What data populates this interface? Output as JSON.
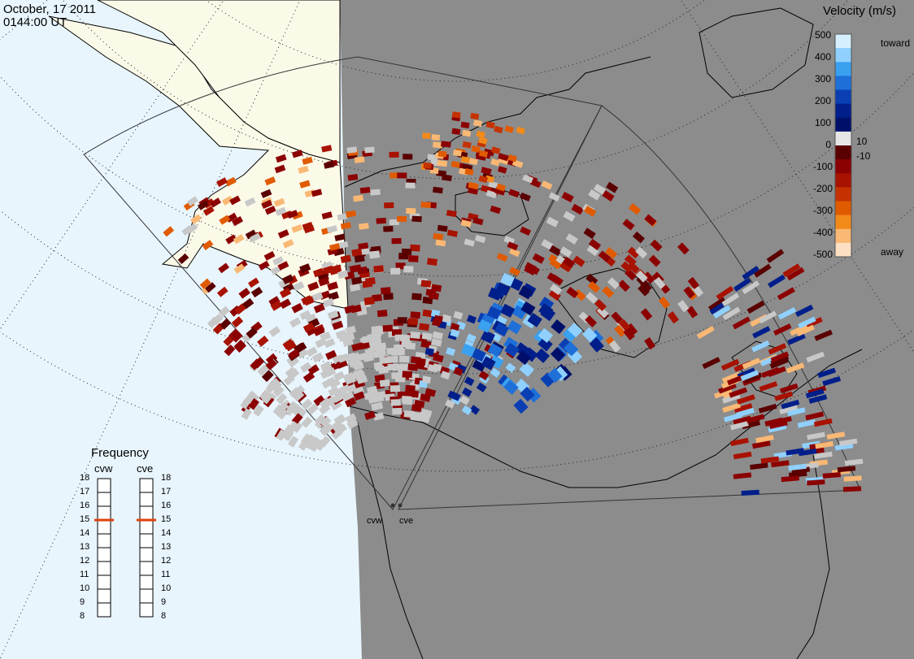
{
  "header": {
    "date": "October, 17 2011",
    "time": "0144:00 UT"
  },
  "legend": {
    "title": "Velocity (m/s)",
    "ticks": [
      "500",
      "400",
      "300",
      "200",
      "100",
      "10",
      "0",
      "-10",
      "-100",
      "-200",
      "-300",
      "-400",
      "-500"
    ],
    "toward_label": "toward",
    "away_label": "away",
    "colors": [
      "#d6efff",
      "#8fd0ff",
      "#3aa0f0",
      "#1e6fd8",
      "#0a3fb4",
      "#001f8a",
      "#00106a",
      "#e6e6e6",
      "#5a0000",
      "#8b0000",
      "#a81200",
      "#c53200",
      "#e05a00",
      "#f28a1a",
      "#f9b874",
      "#fde0c4"
    ]
  },
  "frequency": {
    "title": "Frequency",
    "radars": [
      "cvw",
      "cve"
    ],
    "scale": [
      "18",
      "17",
      "16",
      "15",
      "14",
      "13",
      "12",
      "11",
      "10",
      "9",
      "8"
    ],
    "selected_mhz": [
      15,
      15
    ]
  },
  "map": {
    "radar_labels": [
      "cvw",
      "cve"
    ],
    "colors": {
      "land_day": "#fbf9e8",
      "ocean_day": "#e8f5fd",
      "night": "#8c8c8c",
      "gs_scatter": "#c8c8c8"
    }
  }
}
